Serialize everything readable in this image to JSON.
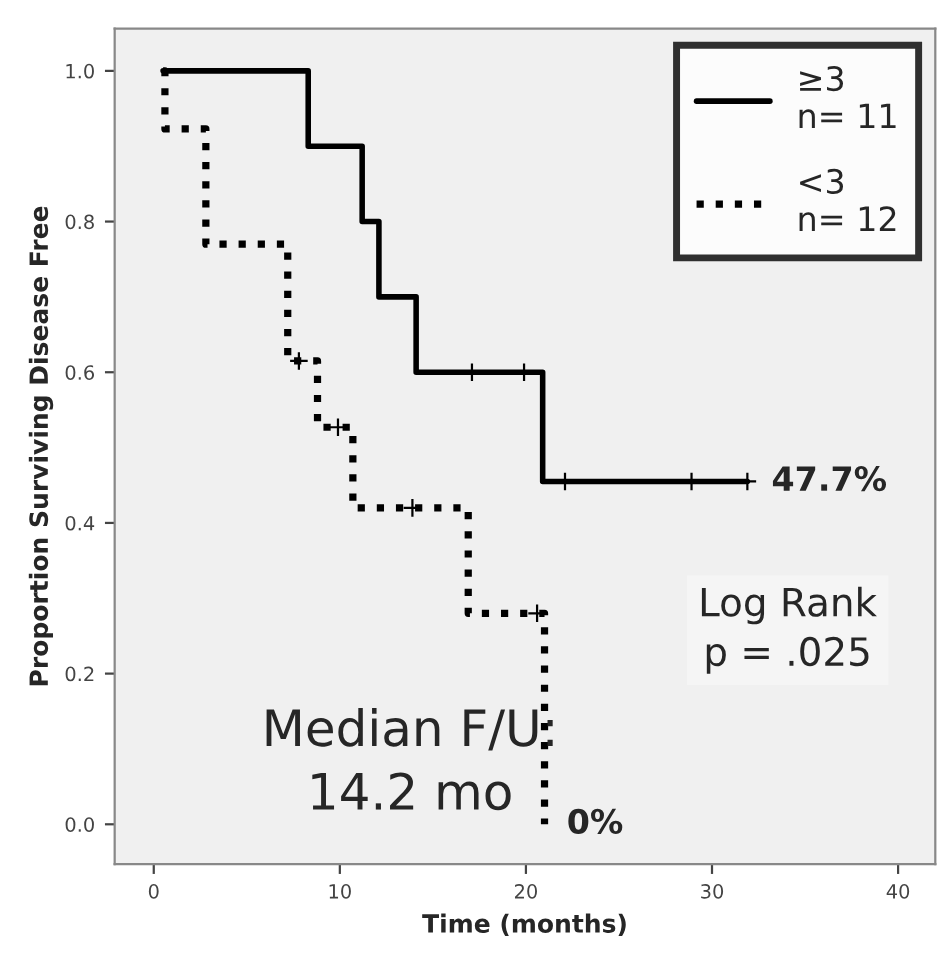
{
  "chart_data": {
    "type": "step",
    "xlabel": "Time (months)",
    "ylabel": "Proportion Surviving Disease Free",
    "series": [
      {
        "name": "≥3\nn= 11",
        "color": "#000000",
        "line_style": "solid",
        "x": [
          0.5,
          8.3,
          11.2,
          12.1,
          14.1,
          20.9,
          31.9
        ],
        "values": [
          1.0,
          0.9,
          0.8,
          0.7,
          0.6,
          0.455,
          0.455
        ]
      },
      {
        "name": "<3\nn= 12",
        "color": "#000000",
        "line_style": "dotted",
        "x": [
          0.5,
          0.6,
          2.8,
          7.2,
          8.8,
          10.7,
          16.9,
          21.0
        ],
        "values": [
          1.0,
          0.923,
          0.77,
          0.615,
          0.527,
          0.42,
          0.28,
          0.0
        ]
      },
      {
        "type": "scatter",
        "color": "#000000",
        "marker": "cross",
        "x": [
          17.1,
          19.9,
          22.1,
          28.9,
          31.9
        ],
        "values": [
          0.6,
          0.6,
          0.455,
          0.455,
          0.455
        ]
      },
      {
        "type": "scatter",
        "color": "#000000",
        "marker": "cross",
        "x": [
          7.8,
          9.9,
          13.9,
          20.6
        ],
        "values": [
          0.615,
          0.527,
          0.42,
          0.28
        ]
      }
    ],
    "annotations": [
      {
        "text": "47.7%",
        "x": 32,
        "y": 0.455
      },
      {
        "text": "0%",
        "x": 21,
        "y": 0.0
      },
      "Log Rank\np = .025",
      "Median F/U:\n14.2 mo"
    ],
    "xlim": [
      -2.1,
      42
    ],
    "ylim": [
      -0.053,
      1.056
    ],
    "xticks": [
      0,
      10,
      20,
      30,
      40
    ],
    "yticks": [
      {
        "value": 0,
        "label": "0.0"
      },
      {
        "value": 0.2,
        "label": "0.2"
      },
      {
        "value": 0.4,
        "label": "0.4"
      },
      {
        "value": 0.6,
        "label": "0.6"
      },
      {
        "value": 0.8,
        "label": "0.8"
      },
      {
        "value": 1.0,
        "label": "1.0"
      }
    ],
    "grid": false,
    "legend": "top right"
  }
}
